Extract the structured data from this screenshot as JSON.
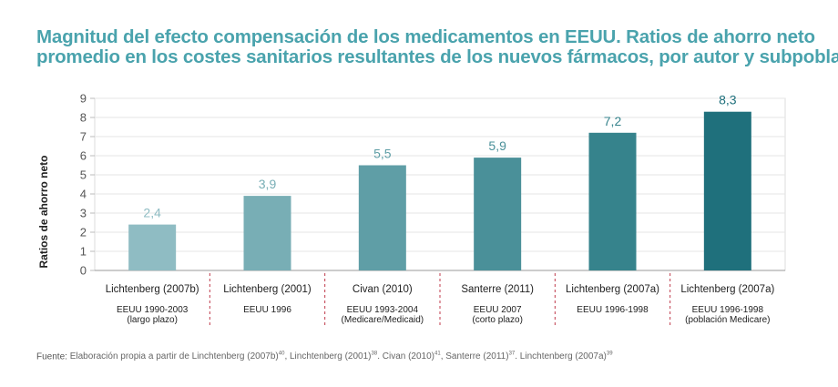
{
  "title_line1": "Magnitud del efecto compensación de los medicamentos en EEUU. Ratios de ahorro neto",
  "title_line2": "promedio en los costes sanitarios resultantes de los nuevos fármacos, por autor y subpoblación",
  "source_label": "Fuente:",
  "source_parts": [
    {
      "text": " Elaboración propia a partir de Linchtenberg (2007b)",
      "sup": "40"
    },
    {
      "text": ",  Linchtenberg (2001)",
      "sup": "38"
    },
    {
      "text": ". Civan (2010)",
      "sup": "41"
    },
    {
      "text": ",  Santerre (2011)",
      "sup": "37"
    },
    {
      "text": ". Linchtenberg (2007a)",
      "sup": "39"
    }
  ],
  "chart_data": {
    "type": "bar",
    "ylabel": "Ratios de ahorro neto",
    "ylim": [
      0,
      9
    ],
    "yticks": [
      "0",
      "1",
      "2",
      "3",
      "4",
      "5",
      "6",
      "7",
      "8",
      "9"
    ],
    "grid": true,
    "categories": [
      {
        "author": "Lichtenberg (2007b)",
        "sub": [
          "EEUU 1990-2003",
          "(largo plazo)"
        ]
      },
      {
        "author": "Lichtenberg (2001)",
        "sub": [
          "EEUU 1996"
        ]
      },
      {
        "author": "Civan (2010)",
        "sub": [
          "EEUU 1993-2004",
          "(Medicare/Medicaid)"
        ]
      },
      {
        "author": "Santerre (2011)",
        "sub": [
          "EEUU 2007",
          "(corto plazo)"
        ]
      },
      {
        "author": "Lichtenberg (2007a)",
        "sub": [
          "EEUU 1996-1998"
        ]
      },
      {
        "author": "Lichtenberg (2007a)",
        "sub": [
          "EEUU 1996-1998",
          "(población Medicare)"
        ]
      }
    ],
    "values": [
      2.4,
      3.9,
      5.5,
      5.9,
      7.2,
      8.3
    ],
    "value_labels": [
      "2,4",
      "3,9",
      "5,5",
      "5,9",
      "7,2",
      "8,3"
    ],
    "bar_colors": [
      "#8fbcc3",
      "#78aeb5",
      "#5f9ea6",
      "#4a9099",
      "#36838c",
      "#1f707c"
    ],
    "label_colors": [
      "#8fbcc3",
      "#78aeb5",
      "#5f9ea6",
      "#4a9099",
      "#36838c",
      "#1f707c"
    ]
  }
}
